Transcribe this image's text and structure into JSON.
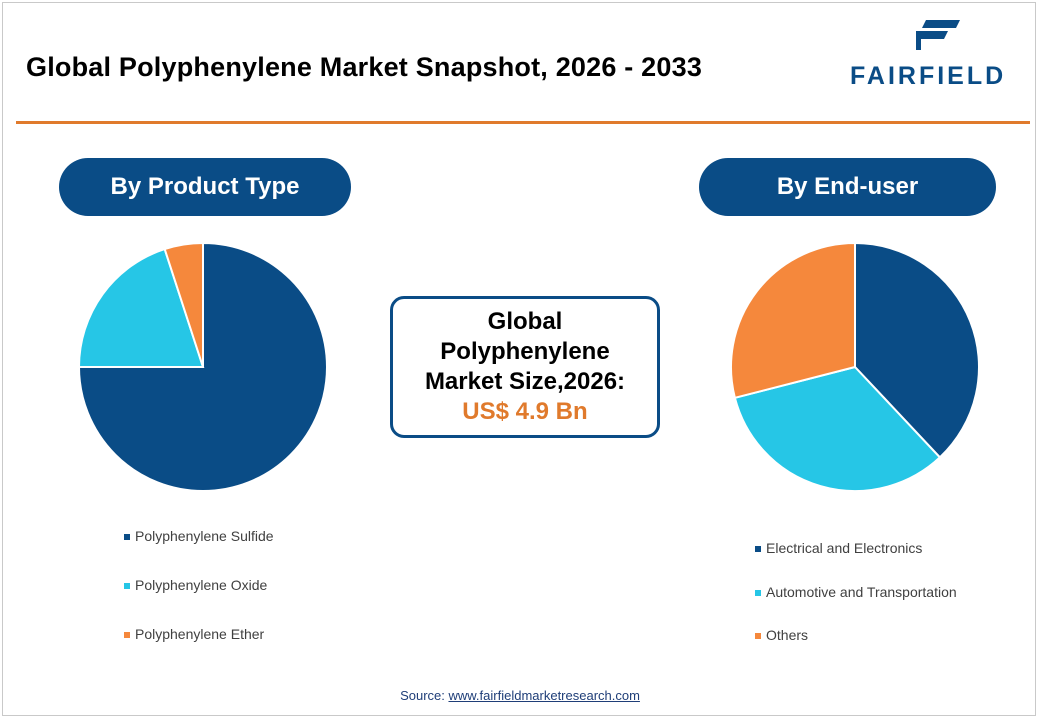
{
  "header": {
    "title": "Global Polyphenylene Market Snapshot, 2026 - 2033",
    "logo_text": "FAIRFIELD",
    "logo_icon": "fairfield-flag-icon"
  },
  "colors": {
    "primary": "#0a4c86",
    "accent": "#e07a2c",
    "light_blue": "#26c6e6",
    "orange": "#f5883c"
  },
  "sections": {
    "left_label": "By Product Type",
    "right_label": "By End-user"
  },
  "center": {
    "line1": "Global",
    "line2": "Polyphenylene",
    "line3": "Market Size,2026:",
    "value": "US$ 4.9 Bn"
  },
  "source": {
    "label": "Source: ",
    "link_text": "www.fairfieldmarketresearch.com"
  },
  "chart_data": [
    {
      "type": "pie",
      "title": "By Product Type",
      "categories": [
        "Polyphenylene Sulfide",
        "Polyphenylene Oxide",
        "Polyphenylene Ether"
      ],
      "values": [
        75,
        20,
        5
      ],
      "colors": [
        "#0a4c86",
        "#26c6e6",
        "#f5883c"
      ],
      "legend": "bottom"
    },
    {
      "type": "pie",
      "title": "By End-user",
      "categories": [
        "Electrical and Electronics",
        "Automotive and Transportation",
        "Others"
      ],
      "values": [
        38,
        33,
        29
      ],
      "colors": [
        "#0a4c86",
        "#26c6e6",
        "#f5883c"
      ],
      "legend": "bottom"
    }
  ]
}
